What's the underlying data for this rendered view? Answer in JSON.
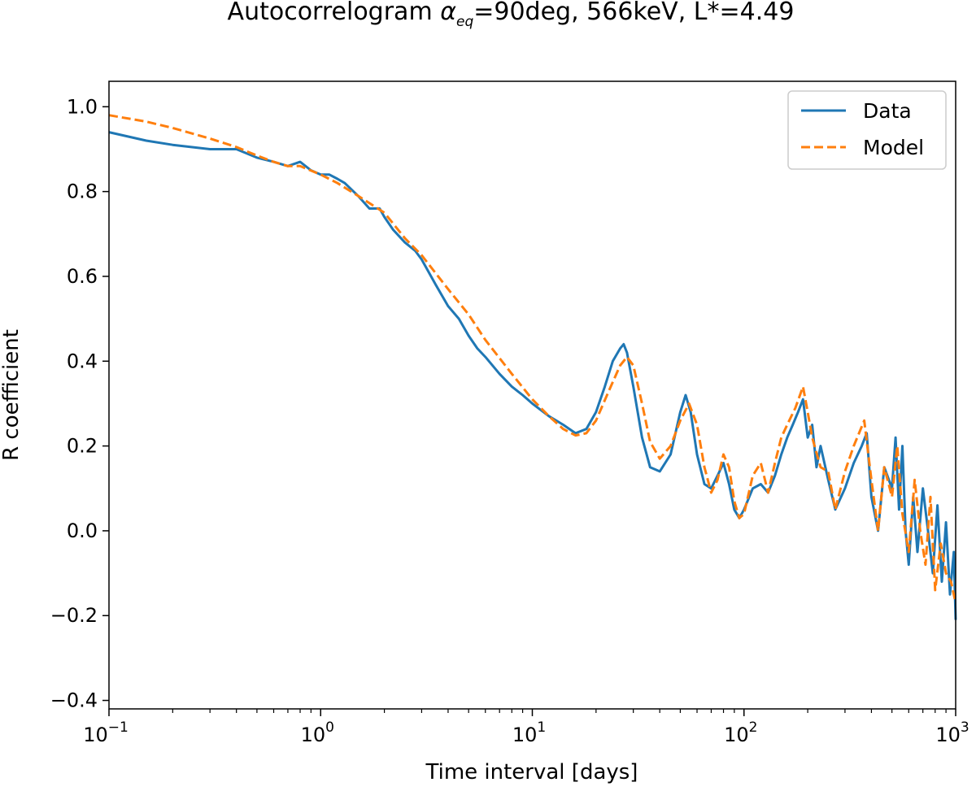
{
  "chart_data": {
    "type": "line",
    "title_prefix": "Autocorrelogram ",
    "title_symbol": "α",
    "title_subscript": "eq",
    "title_suffix": "=90deg, 566keV, L*=4.49",
    "xlabel": "Time interval [days]",
    "ylabel": "R coefficient",
    "xscale": "log",
    "xlim": [
      0.1,
      1000
    ],
    "ylim": [
      -0.42,
      1.06
    ],
    "x_ticks": [
      {
        "value": 0.1,
        "base": "10",
        "exp": "−1"
      },
      {
        "value": 1,
        "base": "10",
        "exp": "0"
      },
      {
        "value": 10,
        "base": "10",
        "exp": "1"
      },
      {
        "value": 100,
        "base": "10",
        "exp": "2"
      },
      {
        "value": 1000,
        "base": "10",
        "exp": "3"
      }
    ],
    "y_ticks": [
      {
        "value": -0.4,
        "label": "−0.4"
      },
      {
        "value": -0.2,
        "label": "−0.2"
      },
      {
        "value": 0.0,
        "label": "0.0"
      },
      {
        "value": 0.2,
        "label": "0.2"
      },
      {
        "value": 0.4,
        "label": "0.4"
      },
      {
        "value": 0.6,
        "label": "0.6"
      },
      {
        "value": 0.8,
        "label": "0.8"
      },
      {
        "value": 1.0,
        "label": "1.0"
      }
    ],
    "grid": false,
    "legend_position": "top-right",
    "series": [
      {
        "name": "Data",
        "color": "#1f77b4",
        "style": "solid",
        "x": [
          0.1,
          0.15,
          0.2,
          0.3,
          0.4,
          0.5,
          0.6,
          0.7,
          0.8,
          0.9,
          1.0,
          1.1,
          1.2,
          1.3,
          1.5,
          1.7,
          1.9,
          2.0,
          2.2,
          2.5,
          2.8,
          3.0,
          3.5,
          4.0,
          4.5,
          5.0,
          5.5,
          6.0,
          7.0,
          8.0,
          9.0,
          10,
          12,
          14,
          16,
          18,
          20,
          22,
          24,
          26,
          27,
          28,
          30,
          33,
          36,
          40,
          45,
          50,
          53,
          56,
          60,
          65,
          70,
          75,
          80,
          85,
          90,
          95,
          100,
          110,
          120,
          130,
          140,
          150,
          160,
          170,
          180,
          190,
          200,
          210,
          220,
          230,
          250,
          270,
          300,
          330,
          360,
          380,
          400,
          430,
          460,
          500,
          520,
          540,
          560,
          580,
          600,
          630,
          660,
          700,
          740,
          780,
          820,
          860,
          900,
          940,
          980,
          1000
        ],
        "y": [
          0.94,
          0.92,
          0.91,
          0.9,
          0.9,
          0.88,
          0.87,
          0.86,
          0.87,
          0.85,
          0.84,
          0.84,
          0.83,
          0.82,
          0.79,
          0.76,
          0.76,
          0.74,
          0.71,
          0.68,
          0.66,
          0.64,
          0.58,
          0.53,
          0.5,
          0.46,
          0.43,
          0.41,
          0.37,
          0.34,
          0.32,
          0.3,
          0.27,
          0.25,
          0.23,
          0.24,
          0.28,
          0.34,
          0.4,
          0.43,
          0.44,
          0.42,
          0.34,
          0.22,
          0.15,
          0.14,
          0.18,
          0.28,
          0.32,
          0.28,
          0.18,
          0.11,
          0.1,
          0.13,
          0.16,
          0.11,
          0.05,
          0.03,
          0.05,
          0.1,
          0.11,
          0.09,
          0.13,
          0.18,
          0.22,
          0.25,
          0.28,
          0.31,
          0.22,
          0.25,
          0.15,
          0.2,
          0.12,
          0.05,
          0.1,
          0.16,
          0.2,
          0.23,
          0.08,
          0.0,
          0.15,
          0.1,
          0.22,
          0.05,
          0.2,
          0.0,
          -0.08,
          0.08,
          -0.05,
          0.1,
          0.0,
          -0.1,
          0.06,
          -0.12,
          0.02,
          -0.15,
          -0.05,
          -0.21
        ]
      },
      {
        "name": "Model",
        "color": "#ff7f0e",
        "style": "dashed",
        "x": [
          0.1,
          0.15,
          0.2,
          0.3,
          0.4,
          0.5,
          0.6,
          0.7,
          0.8,
          1.0,
          1.2,
          1.5,
          2.0,
          2.5,
          3.0,
          4.0,
          5.0,
          6.0,
          8.0,
          10,
          12,
          14,
          16,
          18,
          20,
          23,
          26,
          28,
          30,
          33,
          36,
          40,
          45,
          50,
          55,
          60,
          65,
          70,
          75,
          80,
          85,
          90,
          95,
          100,
          110,
          120,
          130,
          140,
          150,
          160,
          175,
          190,
          200,
          210,
          230,
          250,
          270,
          300,
          330,
          370,
          400,
          430,
          460,
          500,
          530,
          560,
          600,
          640,
          680,
          720,
          760,
          800,
          850,
          900,
          950,
          1000
        ],
        "y": [
          0.98,
          0.965,
          0.95,
          0.925,
          0.905,
          0.885,
          0.87,
          0.86,
          0.86,
          0.84,
          0.82,
          0.79,
          0.75,
          0.69,
          0.65,
          0.57,
          0.51,
          0.45,
          0.37,
          0.31,
          0.27,
          0.24,
          0.225,
          0.23,
          0.26,
          0.33,
          0.39,
          0.41,
          0.39,
          0.3,
          0.21,
          0.17,
          0.2,
          0.26,
          0.3,
          0.25,
          0.15,
          0.09,
          0.12,
          0.18,
          0.15,
          0.07,
          0.03,
          0.04,
          0.13,
          0.16,
          0.09,
          0.16,
          0.22,
          0.25,
          0.29,
          0.34,
          0.28,
          0.22,
          0.15,
          0.14,
          0.05,
          0.14,
          0.2,
          0.26,
          0.12,
          0.0,
          0.15,
          0.08,
          0.2,
          0.04,
          -0.05,
          0.12,
          0.0,
          -0.08,
          0.08,
          -0.14,
          -0.03,
          -0.1,
          -0.12,
          -0.17
        ]
      }
    ]
  }
}
